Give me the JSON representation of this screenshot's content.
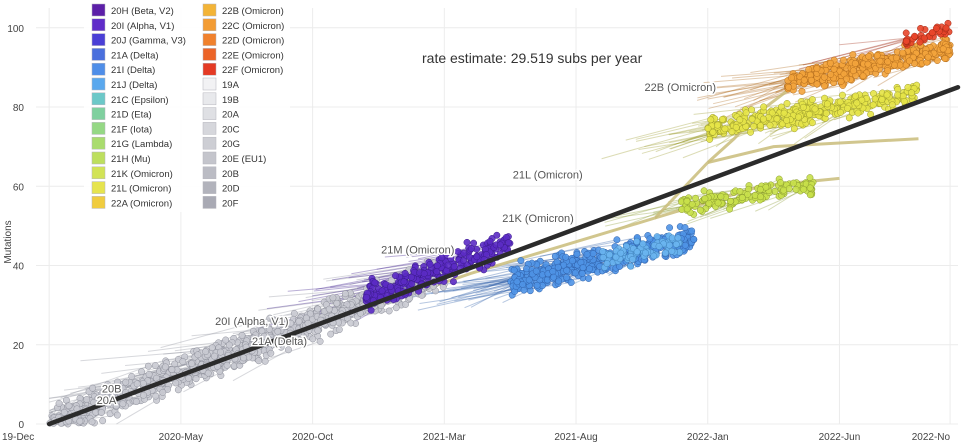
{
  "chart_data": {
    "type": "scatter",
    "title": "",
    "ylabel": "Mutations",
    "xlabel": "",
    "xlim": [
      -0.5,
      34.5
    ],
    "ylim": [
      0,
      105
    ],
    "x_ticks": [
      {
        "label": "19-Dec",
        "x": 0
      },
      {
        "label": "2020-May",
        "x": 5
      },
      {
        "label": "2020-Oct",
        "x": 10
      },
      {
        "label": "2021-Mar",
        "x": 15
      },
      {
        "label": "2021-Aug",
        "x": 20
      },
      {
        "label": "2022-Jan",
        "x": 25
      },
      {
        "label": "2022-Jun",
        "x": 30
      },
      {
        "label": "2022-No",
        "x": 34.2
      }
    ],
    "y_ticks": [
      0,
      20,
      40,
      60,
      80,
      100
    ],
    "annotation": "rate estimate: 29.519 subs per year",
    "regression": {
      "x": [
        0,
        34.5
      ],
      "y": [
        0,
        85
      ]
    },
    "clade_labels": [
      {
        "text": "22B (Omicron)",
        "x": 22.6,
        "y": 84
      },
      {
        "text": "21L (Omicron)",
        "x": 17.6,
        "y": 62
      },
      {
        "text": "21K (Omicron)",
        "x": 17.2,
        "y": 51
      },
      {
        "text": "21M (Omicron)",
        "x": 12.6,
        "y": 43
      },
      {
        "text": "20I (Alpha, V1)",
        "x": 6.3,
        "y": 25
      },
      {
        "text": "21A (Delta)",
        "x": 7.7,
        "y": 20
      },
      {
        "text": "20B",
        "x": 2.0,
        "y": 8
      },
      {
        "text": "20A",
        "x": 1.8,
        "y": 5
      }
    ],
    "legend_left": [
      {
        "label": "20H (Beta, V2)",
        "color": "#5c1fa8"
      },
      {
        "label": "20I (Alpha, V1)",
        "color": "#5f2bc9"
      },
      {
        "label": "20J (Gamma, V3)",
        "color": "#4a3fd6"
      },
      {
        "label": "21A (Delta)",
        "color": "#4a6fdd"
      },
      {
        "label": "21I (Delta)",
        "color": "#4f8ee8"
      },
      {
        "label": "21J (Delta)",
        "color": "#5aa8ee"
      },
      {
        "label": "21C (Epsilon)",
        "color": "#6cc8c8"
      },
      {
        "label": "21D (Eta)",
        "color": "#7fd09f"
      },
      {
        "label": "21F (Iota)",
        "color": "#95d885"
      },
      {
        "label": "21G (Lambda)",
        "color": "#a9dc6e"
      },
      {
        "label": "21H (Mu)",
        "color": "#bddf5e"
      },
      {
        "label": "21K (Omicron)",
        "color": "#d2e356"
      },
      {
        "label": "21L (Omicron)",
        "color": "#e6e44e"
      },
      {
        "label": "22A (Omicron)",
        "color": "#f0cc3f"
      }
    ],
    "legend_right": [
      {
        "label": "22B (Omicron)",
        "color": "#f3b437"
      },
      {
        "label": "22C (Omicron)",
        "color": "#f39c33"
      },
      {
        "label": "22D (Omicron)",
        "color": "#f0812d"
      },
      {
        "label": "22E (Omicron)",
        "color": "#ec6428"
      },
      {
        "label": "22F (Omicron)",
        "color": "#e43a24"
      },
      {
        "label": "19A",
        "color": "#f2f2f4"
      },
      {
        "label": "19B",
        "color": "#e8e9ec"
      },
      {
        "label": "20A",
        "color": "#dfe0e4"
      },
      {
        "label": "20C",
        "color": "#d6d7dc"
      },
      {
        "label": "20G",
        "color": "#cdced4"
      },
      {
        "label": "20E (EU1)",
        "color": "#c4c5cc"
      },
      {
        "label": "20B",
        "color": "#bbbcc4"
      },
      {
        "label": "20D",
        "color": "#b2b3bc"
      },
      {
        "label": "20F",
        "color": "#a9aab4"
      }
    ],
    "clusters": [
      {
        "name": "early-grey",
        "color": "#c9cad2",
        "stroke": "#8d8f9a",
        "x": [
          0,
          15
        ],
        "count": 950,
        "rate": 2.55,
        "intercept": 0,
        "spread": 6
      },
      {
        "name": "alpha-purple",
        "color": "#5b2bc4",
        "stroke": "#3a1a8a",
        "x": [
          12,
          17.5
        ],
        "count": 260,
        "rate": 2.55,
        "intercept": 1,
        "spread": 5
      },
      {
        "name": "delta-blue",
        "color": "#4f93e6",
        "stroke": "#2f5fa8",
        "x": [
          17.5,
          24.5
        ],
        "count": 420,
        "rate": 1.55,
        "intercept": 9,
        "spread": 5
      },
      {
        "name": "delta-light",
        "color": "#6ab5ef",
        "stroke": "#3d7fb8",
        "x": [
          21,
          24
        ],
        "count": 80,
        "rate": 1.5,
        "intercept": 10,
        "spread": 4
      },
      {
        "name": "21K-lime",
        "color": "#c8e04a",
        "stroke": "#8a9a30",
        "x": [
          24,
          29
        ],
        "count": 140,
        "rate": 1.0,
        "intercept": 31,
        "spread": 3.5
      },
      {
        "name": "21L-yellow",
        "color": "#e5e448",
        "stroke": "#9a9a2c",
        "x": [
          25,
          33
        ],
        "count": 320,
        "rate": 1.1,
        "intercept": 47,
        "spread": 4
      },
      {
        "name": "22-orange",
        "color": "#f3a43c",
        "stroke": "#b06a1c",
        "x": [
          28,
          34.2
        ],
        "count": 380,
        "rate": 1.4,
        "intercept": 47,
        "spread": 4
      },
      {
        "name": "22F-red",
        "color": "#e8452a",
        "stroke": "#a02a15",
        "x": [
          32.5,
          34.2
        ],
        "count": 40,
        "rate": 1.6,
        "intercept": 45,
        "spread": 3
      }
    ]
  }
}
